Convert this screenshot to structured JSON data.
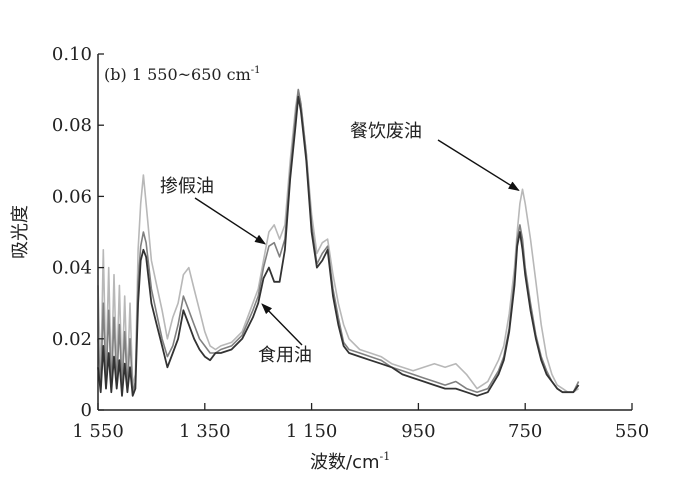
{
  "chart_data": {
    "type": "line",
    "title": "(b) 1 550~650 cm",
    "title_sup": "-1",
    "xlabel": "波数/cm",
    "xlabel_sup": "-1",
    "ylabel": "吸光度",
    "xlim": [
      1550,
      550
    ],
    "ylim": [
      0,
      0.1
    ],
    "grid": false,
    "xticks": [
      1550,
      1350,
      1150,
      950,
      750,
      550
    ],
    "xtick_labels": [
      "1 550",
      "1 350",
      "1 150",
      "950",
      "750",
      "550"
    ],
    "yticks": [
      0,
      0.02,
      0.04,
      0.06,
      0.08,
      0.1
    ],
    "ytick_labels": [
      "0",
      "0.02",
      "0.04",
      "0.06",
      "0.08",
      "0.10"
    ],
    "x": [
      1550,
      1545,
      1540,
      1535,
      1530,
      1525,
      1520,
      1515,
      1510,
      1505,
      1500,
      1495,
      1490,
      1485,
      1480,
      1475,
      1470,
      1465,
      1460,
      1450,
      1440,
      1430,
      1420,
      1410,
      1400,
      1390,
      1380,
      1370,
      1360,
      1350,
      1340,
      1330,
      1320,
      1300,
      1280,
      1260,
      1250,
      1240,
      1230,
      1220,
      1210,
      1200,
      1190,
      1180,
      1175,
      1170,
      1160,
      1150,
      1140,
      1130,
      1120,
      1110,
      1100,
      1090,
      1080,
      1060,
      1040,
      1020,
      1000,
      980,
      960,
      940,
      920,
      900,
      880,
      860,
      840,
      820,
      800,
      790,
      780,
      770,
      765,
      760,
      755,
      750,
      740,
      730,
      720,
      710,
      700,
      690,
      680,
      670,
      660,
      650
    ],
    "series": [
      {
        "name": "餐饮废油",
        "color": "#b8b8b8",
        "values": [
          0.035,
          0.008,
          0.045,
          0.01,
          0.04,
          0.008,
          0.038,
          0.01,
          0.035,
          0.008,
          0.032,
          0.008,
          0.03,
          0.007,
          0.01,
          0.045,
          0.058,
          0.066,
          0.058,
          0.042,
          0.035,
          0.028,
          0.02,
          0.026,
          0.03,
          0.038,
          0.04,
          0.034,
          0.028,
          0.022,
          0.018,
          0.017,
          0.018,
          0.019,
          0.022,
          0.03,
          0.034,
          0.042,
          0.05,
          0.052,
          0.048,
          0.052,
          0.07,
          0.085,
          0.09,
          0.086,
          0.072,
          0.055,
          0.044,
          0.047,
          0.048,
          0.038,
          0.03,
          0.024,
          0.02,
          0.017,
          0.016,
          0.015,
          0.013,
          0.012,
          0.011,
          0.012,
          0.013,
          0.012,
          0.013,
          0.01,
          0.006,
          0.008,
          0.014,
          0.018,
          0.027,
          0.04,
          0.05,
          0.058,
          0.062,
          0.058,
          0.048,
          0.036,
          0.024,
          0.015,
          0.01,
          0.007,
          0.006,
          0.005,
          0.005,
          0.006
        ]
      },
      {
        "name": "掺假油",
        "color": "#808080",
        "values": [
          0.02,
          0.006,
          0.03,
          0.007,
          0.028,
          0.006,
          0.026,
          0.007,
          0.024,
          0.006,
          0.022,
          0.006,
          0.02,
          0.005,
          0.008,
          0.036,
          0.046,
          0.05,
          0.047,
          0.034,
          0.027,
          0.02,
          0.015,
          0.018,
          0.024,
          0.032,
          0.028,
          0.024,
          0.02,
          0.018,
          0.016,
          0.016,
          0.017,
          0.018,
          0.021,
          0.028,
          0.032,
          0.04,
          0.046,
          0.047,
          0.043,
          0.048,
          0.067,
          0.083,
          0.09,
          0.086,
          0.072,
          0.052,
          0.041,
          0.044,
          0.046,
          0.034,
          0.026,
          0.019,
          0.017,
          0.016,
          0.015,
          0.014,
          0.012,
          0.011,
          0.01,
          0.009,
          0.008,
          0.007,
          0.008,
          0.006,
          0.005,
          0.006,
          0.011,
          0.015,
          0.023,
          0.037,
          0.048,
          0.052,
          0.048,
          0.04,
          0.03,
          0.021,
          0.015,
          0.011,
          0.008,
          0.006,
          0.005,
          0.005,
          0.005,
          0.008
        ]
      },
      {
        "name": "食用油",
        "color": "#333333",
        "values": [
          0.012,
          0.005,
          0.018,
          0.006,
          0.016,
          0.005,
          0.015,
          0.006,
          0.014,
          0.004,
          0.013,
          0.005,
          0.012,
          0.004,
          0.006,
          0.03,
          0.042,
          0.045,
          0.043,
          0.03,
          0.024,
          0.018,
          0.012,
          0.016,
          0.02,
          0.028,
          0.024,
          0.02,
          0.017,
          0.015,
          0.014,
          0.016,
          0.016,
          0.017,
          0.02,
          0.026,
          0.03,
          0.037,
          0.04,
          0.036,
          0.036,
          0.045,
          0.065,
          0.08,
          0.088,
          0.084,
          0.07,
          0.05,
          0.04,
          0.042,
          0.045,
          0.032,
          0.024,
          0.018,
          0.016,
          0.015,
          0.014,
          0.013,
          0.012,
          0.01,
          0.009,
          0.008,
          0.007,
          0.006,
          0.006,
          0.005,
          0.004,
          0.005,
          0.01,
          0.014,
          0.022,
          0.035,
          0.046,
          0.05,
          0.045,
          0.038,
          0.028,
          0.02,
          0.014,
          0.01,
          0.008,
          0.006,
          0.005,
          0.005,
          0.005,
          0.007
        ]
      }
    ],
    "annotations": [
      {
        "text": "餐饮废油",
        "x": 755,
        "y": 0.062
      },
      {
        "text": "掺假油",
        "x": 1230,
        "y": 0.047
      },
      {
        "text": "食用油",
        "x": 1235,
        "y": 0.03
      }
    ]
  }
}
